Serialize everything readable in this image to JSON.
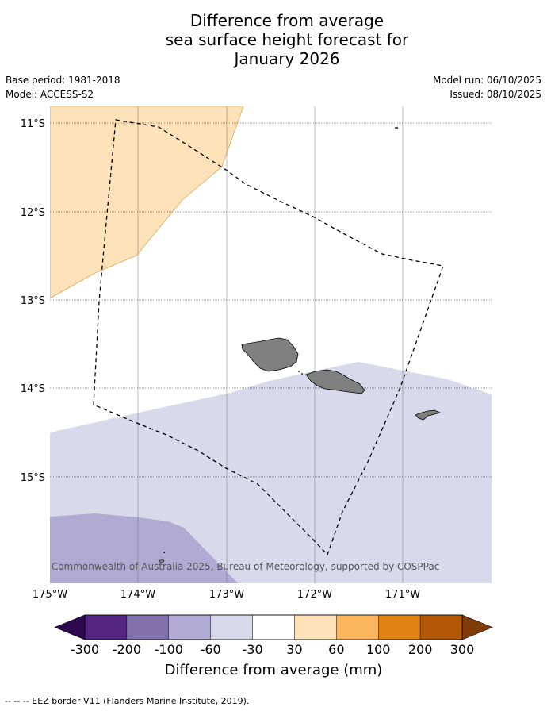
{
  "title": {
    "line1": "Difference from average",
    "line2": "sea surface height forecast for",
    "line3": "January 2026"
  },
  "meta": {
    "base_period": "Base period: 1981-2018",
    "model": "Model: ACCESS-S2",
    "model_run": "Model run: 06/10/2025",
    "issued": "Issued: 08/10/2025"
  },
  "map": {
    "lat_labels": [
      "11°S",
      "12°S",
      "13°S",
      "14°S",
      "15°S"
    ],
    "lon_labels": [
      "175°W",
      "174°W",
      "173°W",
      "172°W",
      "171°W"
    ],
    "copyright": "© Commonwealth of Australia 2025, Bureau of Meteorology, supported by COSPPac",
    "land_color": "#808080",
    "anomaly_fills": {
      "positive_30_60": "#fde1b9",
      "negative_60_30": "#d8d9ea",
      "negative_100_60": "#b1abd3"
    }
  },
  "colorbar": {
    "label": "Difference from average (mm)",
    "ticks": [
      "-300",
      "-200",
      "-100",
      "-60",
      "-30",
      "30",
      "60",
      "100",
      "200",
      "300"
    ],
    "colors": [
      "#2d0a4f",
      "#552582",
      "#8071ac",
      "#b1abd3",
      "#d8d9ea",
      "#ffffff",
      "#fde1b9",
      "#fbb65d",
      "#e08214",
      "#b35807",
      "#7f3b08"
    ]
  },
  "footer": {
    "legend": "--  --  -- EEZ border V11 (Flanders Marine Institute, 2019)."
  }
}
